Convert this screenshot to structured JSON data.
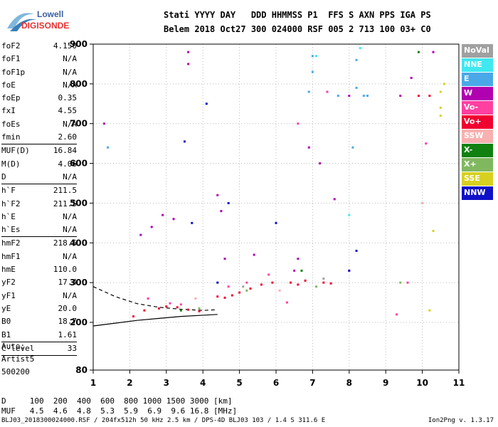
{
  "logo": {
    "line1": "Lowell",
    "line2": "DIGISONDE"
  },
  "header": {
    "labels": "Stati YYYY DAY   DDD HHMMSS P1  FFS S AXN PPS IGA PS",
    "values": "Belem 2018 Oct27 300 024000 RSF 005 2 713 100 03+ C0"
  },
  "params_1": [
    {
      "k": "foF2",
      "v": "4.150"
    },
    {
      "k": "foF1",
      "v": "N/A"
    },
    {
      "k": "foF1p",
      "v": "N/A"
    },
    {
      "k": "foE",
      "v": "N/A"
    },
    {
      "k": "foEp",
      "v": "0.35"
    },
    {
      "k": "fxI",
      "v": "4.55"
    },
    {
      "k": "foEs",
      "v": "N/A"
    },
    {
      "k": "fmin",
      "v": "2.60"
    }
  ],
  "params_2": [
    {
      "k": "MUF(D)",
      "v": "16.84"
    },
    {
      "k": "M(D)",
      "v": "4.06"
    },
    {
      "k": "D",
      "v": "N/A"
    }
  ],
  "params_3": [
    {
      "k": "h`F",
      "v": "211.5"
    },
    {
      "k": "h`F2",
      "v": "211.5"
    },
    {
      "k": "h`E",
      "v": "N/A"
    },
    {
      "k": "h`Es",
      "v": "N/A"
    }
  ],
  "params_4": [
    {
      "k": "hmF2",
      "v": "218.6"
    },
    {
      "k": "hmF1",
      "v": "N/A"
    },
    {
      "k": "hmE",
      "v": "110.0"
    },
    {
      "k": "yF2",
      "v": "17.4"
    },
    {
      "k": "yF1",
      "v": "N/A"
    },
    {
      "k": "yE",
      "v": "20.0"
    },
    {
      "k": "B0",
      "v": "18.7"
    },
    {
      "k": "B1",
      "v": "1.61"
    }
  ],
  "params_5": [
    {
      "k": "C-level",
      "v": "33"
    }
  ],
  "auto": [
    "Auto:",
    "Artist5",
    "500200"
  ],
  "legend": [
    {
      "label": "NoVal",
      "color": "#a0a0a0"
    },
    {
      "label": "NNE",
      "color": "#40e8f0"
    },
    {
      "label": "E",
      "color": "#4aa8e8"
    },
    {
      "label": "W",
      "color": "#b000b0"
    },
    {
      "label": "Vo-",
      "color": "#ff40a0"
    },
    {
      "label": "Vo+",
      "color": "#f00030"
    },
    {
      "label": "SSW",
      "color": "#f8b0b0"
    },
    {
      "label": "X-",
      "color": "#108010"
    },
    {
      "label": "X+",
      "color": "#80b860"
    },
    {
      "label": "SSE",
      "color": "#d8d020"
    },
    {
      "label": "NNW",
      "color": "#1010c8"
    }
  ],
  "footer": {
    "d_row": "D     100  200  400  600  800 1000 1500 3000 [km]",
    "muf_row": "MUF   4.5  4.6  4.8  5.3  5.9  6.9  9.6 16.8 [MHz]",
    "credit": "BLJ03_2018300024000.RSF / 204fx512h 50 kHz 2.5 km / DPS-4D BLJ03 103 / 1.4 S 311.6 E",
    "version": "Ion2Png v. 1.3.17"
  },
  "chart_data": {
    "type": "scatter",
    "xlim": [
      1,
      11
    ],
    "ylim": [
      80,
      900
    ],
    "x_ticks": [
      1,
      2,
      3,
      4,
      5,
      6,
      7,
      8,
      9,
      10,
      11
    ],
    "y_ticks": [
      80,
      200,
      300,
      400,
      500,
      600,
      700,
      800,
      900
    ],
    "grid": true,
    "legend_position": "right",
    "series": [
      {
        "name": "Vo+",
        "color": "#f00030",
        "points": [
          [
            2.1,
            215
          ],
          [
            2.4,
            230
          ],
          [
            2.8,
            235
          ],
          [
            3.0,
            240
          ],
          [
            3.3,
            238
          ],
          [
            3.6,
            232
          ],
          [
            3.9,
            228
          ],
          [
            4.4,
            265
          ],
          [
            4.6,
            262
          ],
          [
            4.8,
            268
          ],
          [
            5.0,
            275
          ],
          [
            5.3,
            285
          ],
          [
            5.6,
            295
          ],
          [
            5.9,
            300
          ],
          [
            6.4,
            300
          ],
          [
            6.6,
            295
          ],
          [
            6.8,
            305
          ],
          [
            7.3,
            300
          ],
          [
            7.5,
            298
          ],
          [
            9.9,
            770
          ],
          [
            10.2,
            770
          ]
        ]
      },
      {
        "name": "W",
        "color": "#b000b0",
        "points": [
          [
            2.3,
            420
          ],
          [
            2.6,
            440
          ],
          [
            2.9,
            470
          ],
          [
            3.2,
            460
          ],
          [
            3.6,
            850
          ],
          [
            3.6,
            880
          ],
          [
            4.4,
            520
          ],
          [
            4.5,
            480
          ],
          [
            4.6,
            360
          ],
          [
            5.4,
            370
          ],
          [
            6.5,
            330
          ],
          [
            6.6,
            360
          ],
          [
            6.9,
            640
          ],
          [
            7.2,
            600
          ],
          [
            7.6,
            510
          ],
          [
            8.0,
            770
          ],
          [
            9.4,
            770
          ],
          [
            9.7,
            815
          ],
          [
            10.3,
            880
          ],
          [
            1.3,
            700
          ]
        ]
      },
      {
        "name": "Vo-",
        "color": "#ff40a0",
        "points": [
          [
            2.5,
            260
          ],
          [
            3.1,
            248
          ],
          [
            3.4,
            245
          ],
          [
            4.7,
            290
          ],
          [
            5.2,
            300
          ],
          [
            5.8,
            320
          ],
          [
            6.3,
            250
          ],
          [
            6.6,
            700
          ],
          [
            7.4,
            780
          ],
          [
            8.0,
            330
          ],
          [
            9.3,
            220
          ],
          [
            9.6,
            300
          ],
          [
            10.1,
            650
          ]
        ]
      },
      {
        "name": "E",
        "color": "#4aa8e8",
        "points": [
          [
            6.9,
            780
          ],
          [
            7.0,
            830
          ],
          [
            7.0,
            870
          ],
          [
            7.7,
            770
          ],
          [
            8.2,
            790
          ],
          [
            8.2,
            860
          ],
          [
            8.4,
            770
          ],
          [
            8.5,
            770
          ],
          [
            8.1,
            640
          ],
          [
            1.4,
            640
          ]
        ]
      },
      {
        "name": "NNW",
        "color": "#1010c8",
        "points": [
          [
            3.5,
            655
          ],
          [
            3.7,
            450
          ],
          [
            4.4,
            300
          ],
          [
            4.7,
            500
          ],
          [
            6.0,
            450
          ],
          [
            8.0,
            330
          ],
          [
            8.2,
            380
          ],
          [
            4.1,
            750
          ]
        ]
      },
      {
        "name": "X+",
        "color": "#80b860",
        "points": [
          [
            3.9,
            235
          ],
          [
            5.2,
            280
          ],
          [
            7.1,
            290
          ],
          [
            9.4,
            300
          ]
        ]
      },
      {
        "name": "X-",
        "color": "#108010",
        "points": [
          [
            3.4,
            230
          ],
          [
            6.7,
            330
          ],
          [
            9.9,
            880
          ]
        ]
      },
      {
        "name": "SSE",
        "color": "#d8d020",
        "points": [
          [
            10.5,
            780
          ],
          [
            10.5,
            740
          ],
          [
            10.5,
            720
          ],
          [
            10.3,
            430
          ],
          [
            10.2,
            230
          ],
          [
            10.6,
            800
          ]
        ]
      },
      {
        "name": "NNE",
        "color": "#40e8f0",
        "points": [
          [
            7.1,
            870
          ],
          [
            8.3,
            890
          ],
          [
            8.0,
            470
          ]
        ]
      },
      {
        "name": "SSW",
        "color": "#f8b0b0",
        "points": [
          [
            3.8,
            260
          ],
          [
            6.1,
            280
          ],
          [
            10.0,
            500
          ]
        ]
      },
      {
        "name": "NoVal",
        "color": "#a0a0a0",
        "points": [
          [
            5.1,
            290
          ],
          [
            7.3,
            310
          ]
        ]
      }
    ],
    "dashed_trace": [
      [
        1.0,
        290
      ],
      [
        1.6,
        265
      ],
      [
        2.2,
        247
      ],
      [
        2.8,
        238
      ],
      [
        3.4,
        233
      ],
      [
        4.0,
        230
      ],
      [
        4.4,
        232
      ]
    ],
    "solid_trace": [
      [
        1.0,
        191
      ],
      [
        1.6,
        198
      ],
      [
        2.2,
        205
      ],
      [
        2.8,
        210
      ],
      [
        3.4,
        215
      ],
      [
        4.0,
        218
      ],
      [
        4.4,
        220
      ]
    ]
  }
}
